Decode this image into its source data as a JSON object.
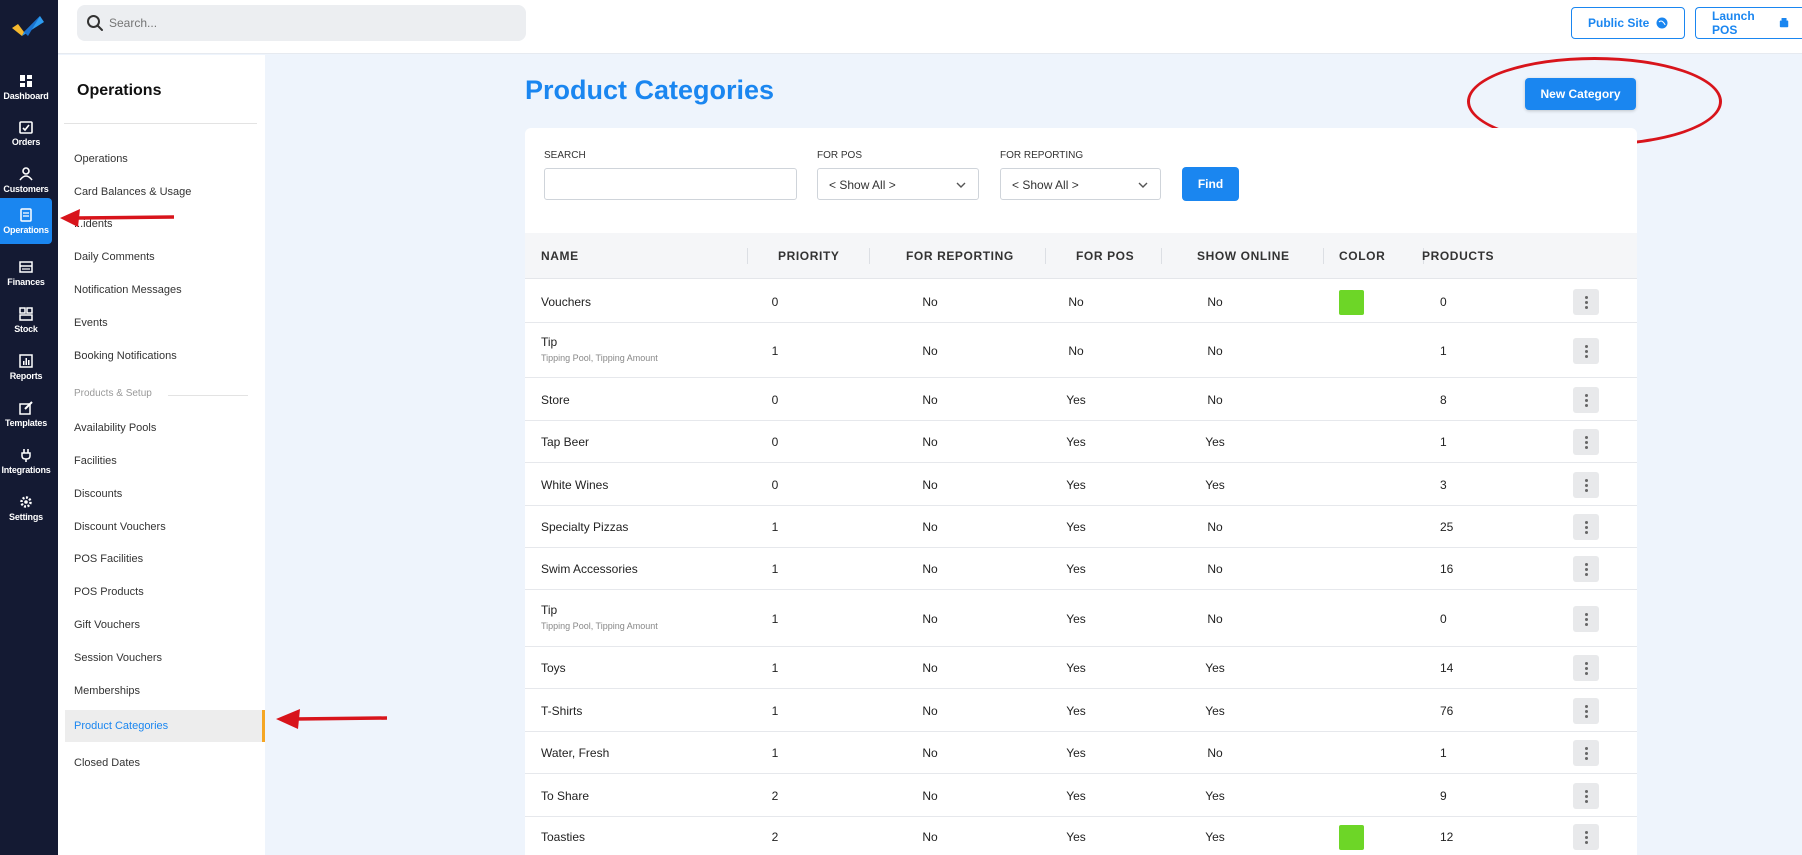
{
  "rail": {
    "items": [
      {
        "label": "Dashboard",
        "icon": "dashboard-icon"
      },
      {
        "label": "Orders",
        "icon": "orders-icon"
      },
      {
        "label": "Customers",
        "icon": "customers-icon"
      },
      {
        "label": "Operations",
        "icon": "operations-icon",
        "active": true
      },
      {
        "label": "Finances",
        "icon": "finances-icon"
      },
      {
        "label": "Stock",
        "icon": "stock-icon"
      },
      {
        "label": "Reports",
        "icon": "reports-icon"
      },
      {
        "label": "Templates",
        "icon": "templates-icon"
      },
      {
        "label": "Integrations",
        "icon": "integrations-icon"
      },
      {
        "label": "Settings",
        "icon": "settings-icon"
      }
    ]
  },
  "header": {
    "search_placeholder": "Search...",
    "public_site": "Public Site",
    "launch_pos": "Launch POS"
  },
  "sidebar": {
    "title": "Operations",
    "items": [
      "Operations",
      "Card Balances & Usage",
      "...idents",
      "Daily Comments",
      "Notification Messages",
      "Events",
      "Booking Notifications"
    ],
    "section_label": "Products & Setup",
    "setup_items": [
      "Availability Pools",
      "Facilities",
      "Discounts",
      "Discount Vouchers",
      "POS Facilities",
      "POS Products",
      "Gift Vouchers",
      "Session Vouchers",
      "Memberships",
      "Product Categories",
      "Closed Dates"
    ],
    "active": "Product Categories"
  },
  "main": {
    "title": "Product Categories",
    "new_button": "New Category",
    "filters": {
      "search_label": "SEARCH",
      "pos_label": "FOR POS",
      "pos_value": "< Show All >",
      "reporting_label": "FOR REPORTING",
      "reporting_value": "< Show All >",
      "find_label": "Find"
    },
    "columns": [
      "NAME",
      "PRIORITY",
      "FOR REPORTING",
      "FOR POS",
      "SHOW ONLINE",
      "COLOR",
      "PRODUCTS"
    ],
    "rows": [
      {
        "name": "Vouchers",
        "sub": "",
        "priority": "0",
        "reporting": "No",
        "pos": "No",
        "online": "No",
        "color": "#6dd627",
        "products": "0"
      },
      {
        "name": "Tip",
        "sub": "Tipping Pool, Tipping Amount",
        "priority": "1",
        "reporting": "No",
        "pos": "No",
        "online": "No",
        "color": "",
        "products": "1"
      },
      {
        "name": "Store",
        "sub": "",
        "priority": "0",
        "reporting": "No",
        "pos": "Yes",
        "online": "No",
        "color": "",
        "products": "8"
      },
      {
        "name": "Tap Beer",
        "sub": "",
        "priority": "0",
        "reporting": "No",
        "pos": "Yes",
        "online": "Yes",
        "color": "",
        "products": "1"
      },
      {
        "name": "White Wines",
        "sub": "",
        "priority": "0",
        "reporting": "No",
        "pos": "Yes",
        "online": "Yes",
        "color": "",
        "products": "3"
      },
      {
        "name": "Specialty Pizzas",
        "sub": "",
        "priority": "1",
        "reporting": "No",
        "pos": "Yes",
        "online": "No",
        "color": "",
        "products": "25"
      },
      {
        "name": "Swim Accessories",
        "sub": "",
        "priority": "1",
        "reporting": "No",
        "pos": "Yes",
        "online": "No",
        "color": "",
        "products": "16"
      },
      {
        "name": "Tip",
        "sub": "Tipping Pool, Tipping Amount",
        "priority": "1",
        "reporting": "No",
        "pos": "Yes",
        "online": "No",
        "color": "",
        "products": "0"
      },
      {
        "name": "Toys",
        "sub": "",
        "priority": "1",
        "reporting": "No",
        "pos": "Yes",
        "online": "Yes",
        "color": "",
        "products": "14"
      },
      {
        "name": "T-Shirts",
        "sub": "",
        "priority": "1",
        "reporting": "No",
        "pos": "Yes",
        "online": "Yes",
        "color": "",
        "products": "76"
      },
      {
        "name": "Water, Fresh",
        "sub": "",
        "priority": "1",
        "reporting": "No",
        "pos": "Yes",
        "online": "No",
        "color": "",
        "products": "1"
      },
      {
        "name": "To Share",
        "sub": "",
        "priority": "2",
        "reporting": "No",
        "pos": "Yes",
        "online": "Yes",
        "color": "",
        "products": "9"
      },
      {
        "name": "Toasties",
        "sub": "",
        "priority": "2",
        "reporting": "No",
        "pos": "Yes",
        "online": "Yes",
        "color": "#6dd627",
        "products": "12"
      }
    ]
  },
  "colors": {
    "brand": "#1a86f0",
    "rail": "#141a33",
    "annotation": "#d8141b",
    "active_accent": "#f5a623"
  }
}
